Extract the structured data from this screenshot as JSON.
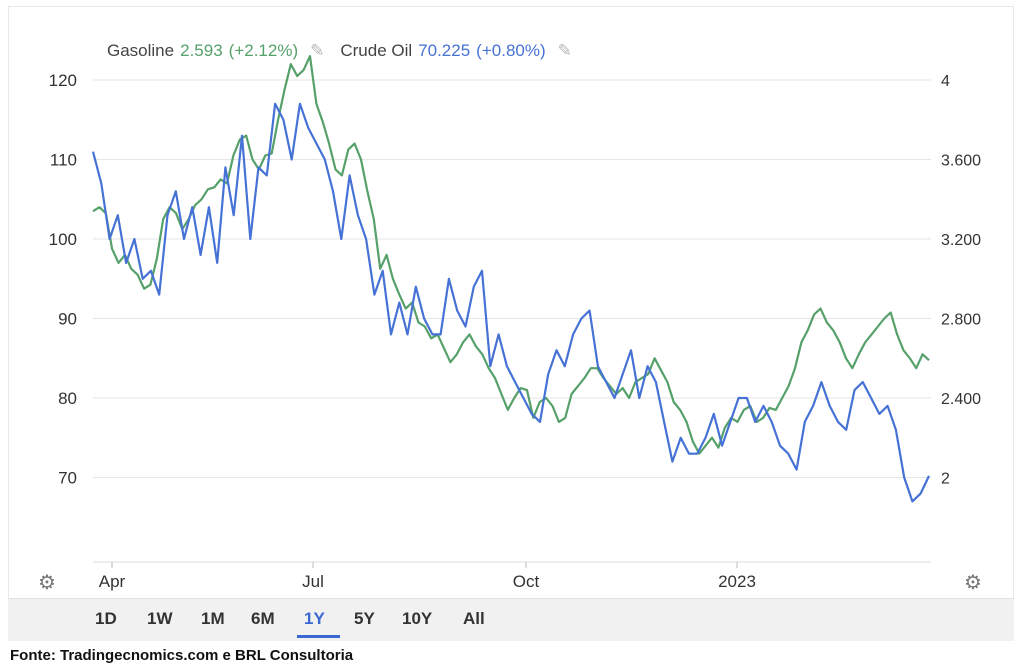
{
  "legend": {
    "gasoline_label": "Gasoline",
    "gasoline_value": "2.593",
    "gasoline_change": "(+2.12%)",
    "crude_label": "Crude Oil",
    "crude_value": "70.225",
    "crude_change": "(+0.80%)",
    "pencil_icon": "pencil-icon"
  },
  "colors": {
    "gasoline": "#56a06a",
    "crude": "#4672d6",
    "grid": "#e6e6e6",
    "active": "#3a68d3"
  },
  "ranges": [
    "1D",
    "1W",
    "1M",
    "6M",
    "1Y",
    "5Y",
    "10Y",
    "All"
  ],
  "active_range": "1Y",
  "source": "Fonte: Tradingecnomics.com e BRL Consultoria",
  "chart_data": {
    "type": "line",
    "x_ticks": [
      "Apr",
      "Jul",
      "Oct",
      "2023"
    ],
    "left_axis": {
      "ticks": [
        "70",
        "80",
        "90",
        "100",
        "110",
        "120"
      ],
      "range": [
        60,
        124
      ]
    },
    "right_axis": {
      "ticks": [
        "2",
        "2.400",
        "2.800",
        "3.200",
        "3.600",
        "4"
      ],
      "range": [
        1.6,
        4.2
      ]
    },
    "grid": true,
    "series": [
      {
        "name": "Gasoline",
        "axis": "right",
        "values": [
          3.34,
          3.36,
          3.33,
          3.15,
          3.08,
          3.12,
          3.05,
          3.02,
          2.95,
          2.97,
          3.1,
          3.3,
          3.36,
          3.33,
          3.25,
          3.3,
          3.37,
          3.4,
          3.45,
          3.46,
          3.5,
          3.48,
          3.62,
          3.7,
          3.72,
          3.6,
          3.55,
          3.62,
          3.63,
          3.8,
          3.95,
          4.08,
          4.02,
          4.05,
          4.12,
          3.88,
          3.79,
          3.68,
          3.55,
          3.52,
          3.65,
          3.68,
          3.6,
          3.44,
          3.3,
          3.05,
          3.12,
          3.0,
          2.92,
          2.85,
          2.88,
          2.78,
          2.76,
          2.7,
          2.72,
          2.65,
          2.58,
          2.62,
          2.68,
          2.72,
          2.66,
          2.62,
          2.55,
          2.5,
          2.42,
          2.34,
          2.4,
          2.45,
          2.44,
          2.3,
          2.38,
          2.4,
          2.36,
          2.28,
          2.3,
          2.42,
          2.46,
          2.5,
          2.55,
          2.55,
          2.5,
          2.46,
          2.42,
          2.45,
          2.4,
          2.48,
          2.5,
          2.52,
          2.6,
          2.54,
          2.48,
          2.38,
          2.34,
          2.28,
          2.18,
          2.12,
          2.16,
          2.2,
          2.15,
          2.25,
          2.3,
          2.28,
          2.34,
          2.36,
          2.28,
          2.3,
          2.35,
          2.34,
          2.4,
          2.46,
          2.55,
          2.68,
          2.74,
          2.82,
          2.85,
          2.78,
          2.74,
          2.68,
          2.6,
          2.55,
          2.62,
          2.68,
          2.72,
          2.76,
          2.8,
          2.83,
          2.72,
          2.64,
          2.6,
          2.55,
          2.62,
          2.59
        ]
      },
      {
        "name": "Crude Oil",
        "axis": "left",
        "values": [
          111,
          107,
          100,
          103,
          97,
          100,
          95,
          96,
          93,
          103,
          106,
          100,
          104,
          98,
          104,
          97,
          109,
          103,
          113,
          100,
          109,
          108,
          117,
          115,
          110,
          117,
          114,
          112,
          110,
          106,
          100,
          108,
          103,
          100,
          93,
          96,
          88,
          92,
          88,
          94,
          90,
          88,
          88,
          95,
          91,
          89,
          94,
          96,
          84,
          88,
          84,
          82,
          80,
          78,
          77,
          83,
          86,
          84,
          88,
          90,
          91,
          84,
          82,
          80,
          83,
          86,
          80,
          84,
          82,
          77,
          72,
          75,
          73,
          73,
          75,
          78,
          74,
          77,
          80,
          80,
          77,
          79,
          77,
          74,
          73,
          71,
          77,
          79,
          82,
          79,
          77,
          76,
          81,
          82,
          80,
          78,
          79,
          76,
          70,
          67,
          68,
          70.2
        ]
      }
    ]
  }
}
